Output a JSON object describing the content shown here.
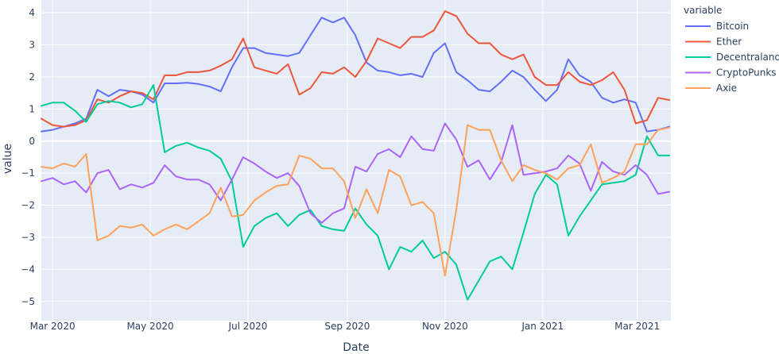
{
  "chart_data": {
    "type": "line",
    "xlabel": "Date",
    "ylabel": "value",
    "legend_title": "variable",
    "legend_position": "right",
    "grid": true,
    "plot_bg": "#e5ecf6",
    "ylim": [
      -5.6,
      4.4
    ],
    "y_ticks": [
      4,
      3,
      2,
      1,
      0,
      -1,
      -2,
      -3,
      -4,
      -5
    ],
    "x_range": [
      "2020-02-23",
      "2021-03-22"
    ],
    "x_ticks": [
      {
        "date": "2020-03-01",
        "label": "Mar 2020"
      },
      {
        "date": "2020-05-01",
        "label": "May 2020"
      },
      {
        "date": "2020-07-01",
        "label": "Jul 2020"
      },
      {
        "date": "2020-09-01",
        "label": "Sep 2020"
      },
      {
        "date": "2020-11-01",
        "label": "Nov 2020"
      },
      {
        "date": "2021-01-01",
        "label": "Jan 2021"
      },
      {
        "date": "2021-03-01",
        "label": "Mar 2021"
      }
    ],
    "x": [
      "2020-02-23",
      "2020-03-01",
      "2020-03-08",
      "2020-03-15",
      "2020-03-22",
      "2020-03-29",
      "2020-04-05",
      "2020-04-12",
      "2020-04-19",
      "2020-04-26",
      "2020-05-03",
      "2020-05-10",
      "2020-05-17",
      "2020-05-24",
      "2020-05-31",
      "2020-06-07",
      "2020-06-14",
      "2020-06-21",
      "2020-06-28",
      "2020-07-05",
      "2020-07-12",
      "2020-07-19",
      "2020-07-26",
      "2020-08-02",
      "2020-08-09",
      "2020-08-16",
      "2020-08-23",
      "2020-08-30",
      "2020-09-06",
      "2020-09-13",
      "2020-09-20",
      "2020-09-27",
      "2020-10-04",
      "2020-10-11",
      "2020-10-18",
      "2020-10-25",
      "2020-11-01",
      "2020-11-08",
      "2020-11-15",
      "2020-11-22",
      "2020-11-29",
      "2020-12-06",
      "2020-12-13",
      "2020-12-20",
      "2020-12-27",
      "2021-01-03",
      "2021-01-10",
      "2021-01-17",
      "2021-01-24",
      "2021-01-31",
      "2021-02-07",
      "2021-02-14",
      "2021-02-21",
      "2021-02-28",
      "2021-03-07",
      "2021-03-14",
      "2021-03-21"
    ],
    "series": [
      {
        "name": "Bitcoin",
        "color": "#636efa",
        "values": [
          0.3,
          0.35,
          0.45,
          0.55,
          0.7,
          1.6,
          1.4,
          1.6,
          1.55,
          1.45,
          1.2,
          1.8,
          1.8,
          1.82,
          1.78,
          1.7,
          1.55,
          2.3,
          2.9,
          2.9,
          2.75,
          2.7,
          2.65,
          2.75,
          3.3,
          3.85,
          3.7,
          3.85,
          3.3,
          2.45,
          2.2,
          2.15,
          2.05,
          2.1,
          2.0,
          2.75,
          3.05,
          2.15,
          1.9,
          1.6,
          1.55,
          1.85,
          2.2,
          2.0,
          1.6,
          1.25,
          1.6,
          2.55,
          2.05,
          1.85,
          1.35,
          1.2,
          1.3,
          1.2,
          0.3,
          0.35,
          0.45
        ]
      },
      {
        "name": "Ether",
        "color": "#ef553b",
        "values": [
          0.7,
          0.5,
          0.45,
          0.5,
          0.65,
          1.3,
          1.2,
          1.4,
          1.55,
          1.5,
          1.3,
          2.05,
          2.05,
          2.15,
          2.15,
          2.2,
          2.35,
          2.55,
          3.2,
          2.3,
          2.2,
          2.1,
          2.4,
          1.45,
          1.65,
          2.15,
          2.1,
          2.3,
          2.0,
          2.5,
          3.2,
          3.05,
          2.9,
          3.25,
          3.25,
          3.45,
          4.05,
          3.9,
          3.35,
          3.05,
          3.05,
          2.7,
          2.55,
          2.7,
          2.0,
          1.75,
          1.75,
          2.15,
          1.85,
          1.75,
          1.9,
          2.15,
          1.6,
          0.55,
          0.65,
          1.35,
          1.28
        ]
      },
      {
        "name": "Decentraland",
        "color": "#00cc96",
        "values": [
          1.1,
          1.2,
          1.2,
          0.95,
          0.6,
          1.15,
          1.25,
          1.2,
          1.05,
          1.15,
          1.75,
          -0.35,
          -0.15,
          -0.05,
          -0.2,
          -0.3,
          -0.55,
          -1.25,
          -3.3,
          -2.65,
          -2.4,
          -2.25,
          -2.65,
          -2.3,
          -2.15,
          -2.65,
          -2.75,
          -2.8,
          -2.1,
          -2.6,
          -2.95,
          -4.0,
          -3.3,
          -3.45,
          -3.1,
          -3.65,
          -3.45,
          -3.85,
          -4.95,
          -4.35,
          -3.75,
          -3.6,
          -4.0,
          -2.85,
          -1.65,
          -1.05,
          -1.35,
          -2.95,
          -2.35,
          -1.85,
          -1.35,
          -1.3,
          -1.25,
          -1.05,
          0.15,
          -0.45,
          -0.45
        ]
      },
      {
        "name": "CryptoPunks",
        "color": "#ab63fa",
        "values": [
          -1.25,
          -1.15,
          -1.35,
          -1.25,
          -1.6,
          -1.0,
          -0.9,
          -1.5,
          -1.35,
          -1.45,
          -1.3,
          -0.75,
          -1.1,
          -1.2,
          -1.2,
          -1.35,
          -1.85,
          -1.2,
          -0.5,
          -0.7,
          -0.95,
          -1.15,
          -1.0,
          -1.4,
          -2.25,
          -2.55,
          -2.25,
          -2.1,
          -0.8,
          -0.95,
          -0.4,
          -0.25,
          -0.5,
          0.15,
          -0.25,
          -0.3,
          0.55,
          0.05,
          -0.8,
          -0.6,
          -1.2,
          -0.65,
          0.5,
          -1.05,
          -1.0,
          -0.95,
          -0.85,
          -0.45,
          -0.7,
          -1.55,
          -0.65,
          -0.95,
          -1.05,
          -0.75,
          -1.05,
          -1.65,
          -1.58
        ]
      },
      {
        "name": "Axie",
        "color": "#ffa15a",
        "values": [
          -0.8,
          -0.85,
          -0.7,
          -0.8,
          -0.4,
          -3.1,
          -2.95,
          -2.65,
          -2.7,
          -2.6,
          -2.95,
          -2.75,
          -2.6,
          -2.75,
          -2.5,
          -2.25,
          -1.45,
          -2.35,
          -2.3,
          -1.85,
          -1.6,
          -1.4,
          -1.35,
          -0.45,
          -0.55,
          -0.85,
          -0.85,
          -1.25,
          -2.4,
          -1.5,
          -2.25,
          -0.9,
          -1.1,
          -2.0,
          -1.9,
          -2.25,
          -4.2,
          -2.15,
          0.5,
          0.35,
          0.35,
          -0.6,
          -1.25,
          -0.75,
          -0.9,
          -1.0,
          -1.2,
          -0.85,
          -0.75,
          -0.1,
          -1.3,
          -1.15,
          -0.95,
          -0.1,
          -0.1,
          0.35,
          0.42
        ]
      }
    ]
  }
}
